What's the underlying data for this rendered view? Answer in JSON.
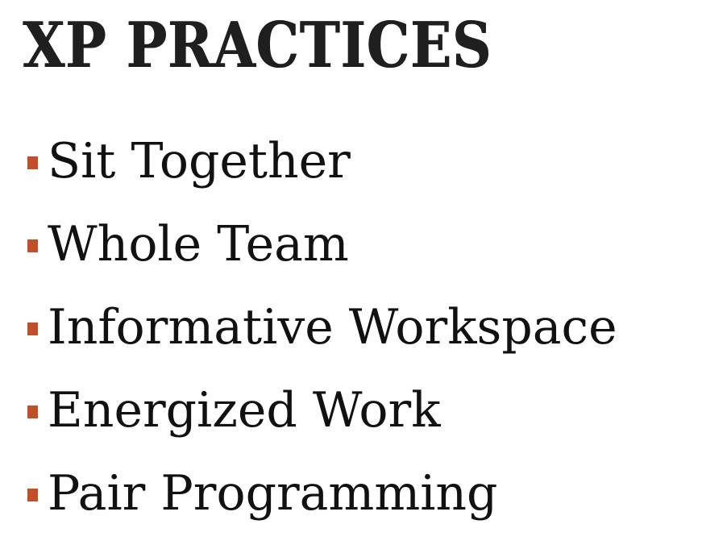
{
  "slide": {
    "title": "XP PRACTICES",
    "bullet_color": "#c0502a",
    "bullets": [
      {
        "label": "Sit Together"
      },
      {
        "label": "Whole Team"
      },
      {
        "label": "Informative Workspace"
      },
      {
        "label": "Energized Work"
      },
      {
        "label": "Pair Programming"
      }
    ]
  }
}
